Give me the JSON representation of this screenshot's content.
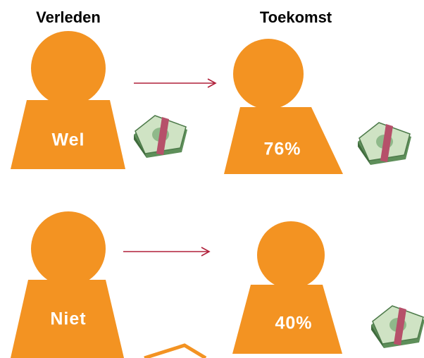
{
  "headers": {
    "past": "Verleden",
    "future": "Toekomst"
  },
  "rows": [
    {
      "past": "Wel",
      "future": "76%"
    },
    {
      "past": "Niet",
      "future": "40%"
    }
  ]
}
